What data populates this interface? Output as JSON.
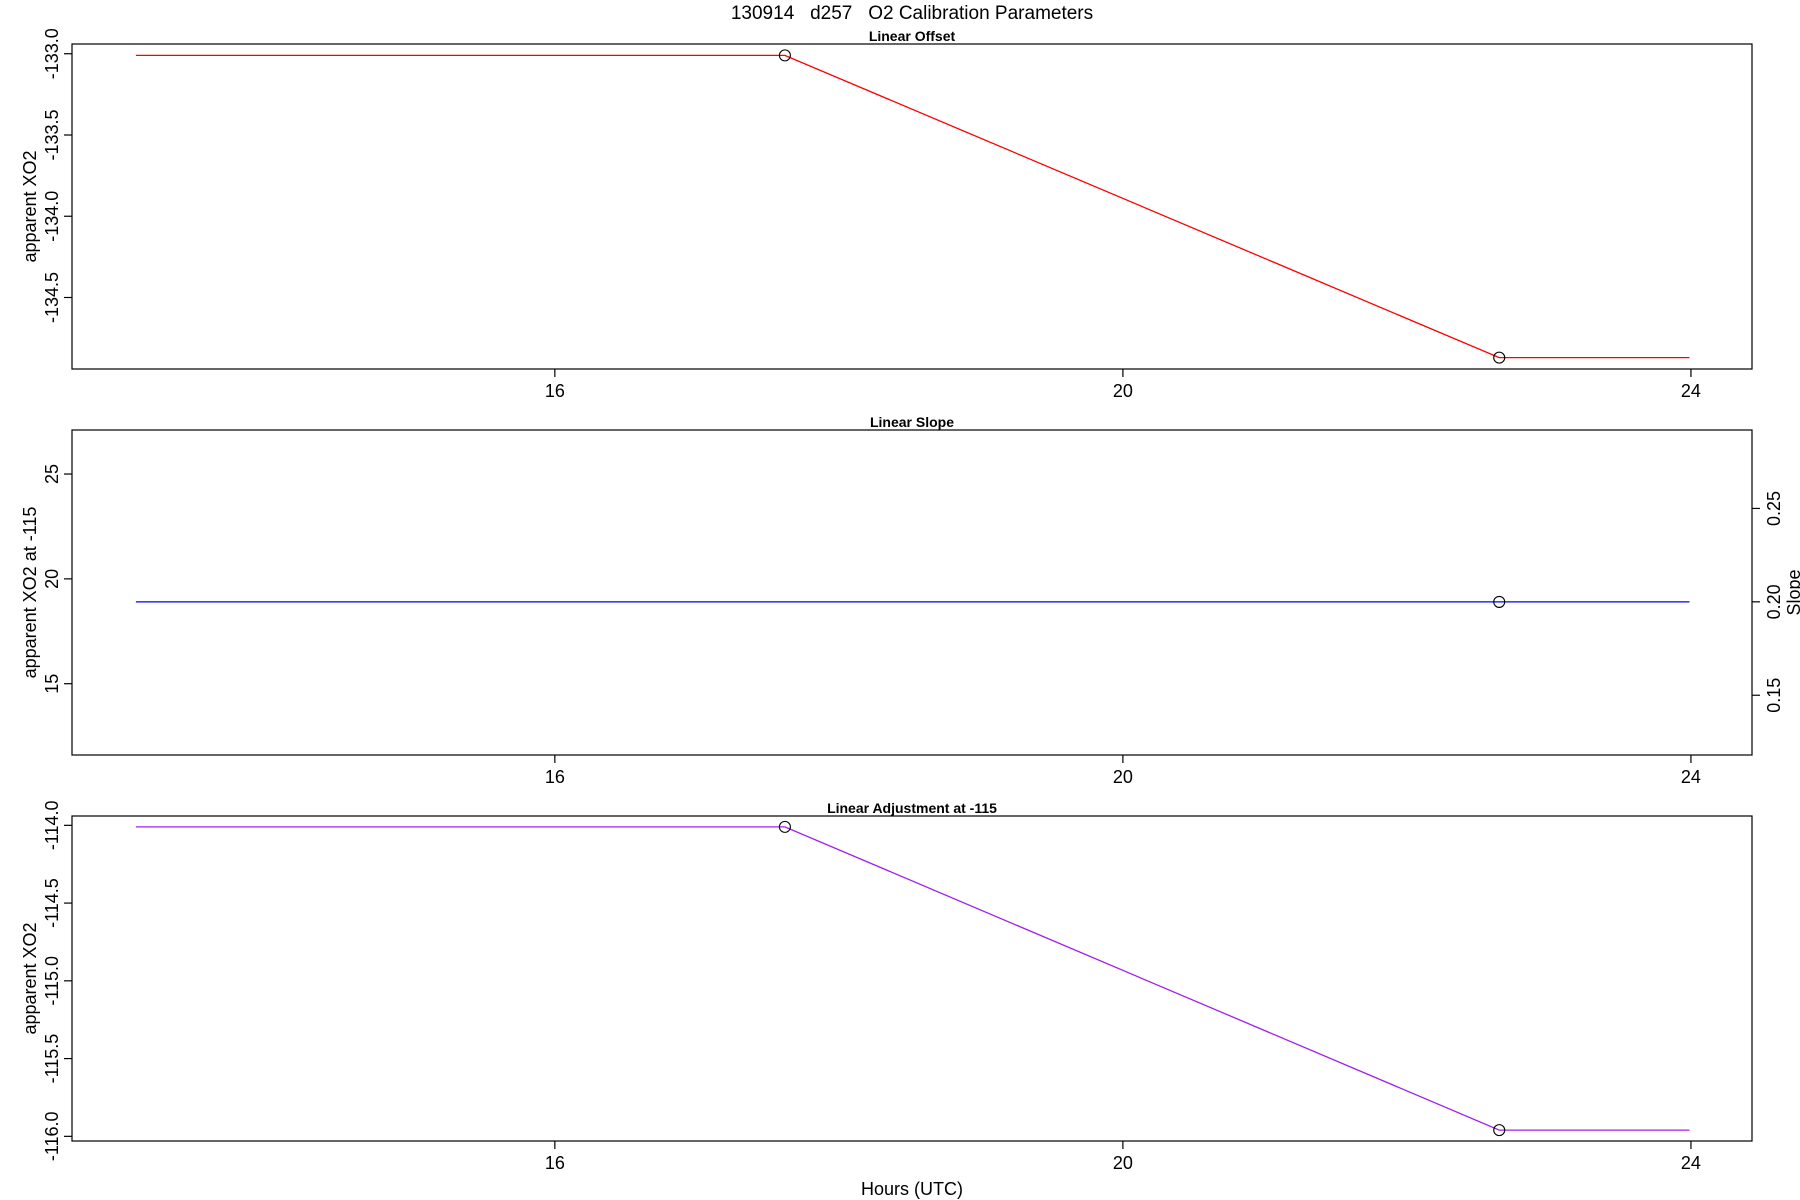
{
  "figure": {
    "title": "130914   d257   O2 Calibration Parameters",
    "xlabel": "Hours (UTC)"
  },
  "chart_data": [
    {
      "type": "line",
      "title": "Linear Offset",
      "xlabel": "",
      "ylabel": "apparent XO2",
      "xlim": [
        12.6,
        24.43
      ],
      "ylim": [
        -134.94,
        -132.94
      ],
      "xticks": [
        16,
        20,
        24
      ],
      "yticks": [
        -133.0,
        -133.5,
        -134.0,
        -134.5
      ],
      "ytick_labels": [
        "-133.0",
        "-133.5",
        "-134.0",
        "-134.5"
      ],
      "series": [
        {
          "color": "#ff0000",
          "x": [
            13.05,
            17.62,
            22.65,
            23.99
          ],
          "y": [
            -133.01,
            -133.01,
            -134.87,
            -134.87
          ]
        }
      ],
      "markers": {
        "x": [
          17.62,
          22.65
        ],
        "y": [
          -133.01,
          -134.87
        ]
      }
    },
    {
      "type": "line",
      "title": "Linear Slope",
      "xlabel": "",
      "ylabel": "apparent XO2 at -115",
      "y2label": "Slope",
      "xlim": [
        12.6,
        24.43
      ],
      "ylim": [
        11.6,
        27.1
      ],
      "y2lim": [
        0.118,
        0.292
      ],
      "xticks": [
        16,
        20,
        24
      ],
      "yticks": [
        15,
        20,
        25
      ],
      "ytick_labels": [
        "15",
        "20",
        "25"
      ],
      "y2ticks": [
        0.15,
        0.2,
        0.25
      ],
      "y2tick_labels": [
        "0.15",
        "0.20",
        "0.25"
      ],
      "series": [
        {
          "color": "#0000ff",
          "x": [
            13.05,
            23.99
          ],
          "y": [
            18.9,
            18.9
          ]
        }
      ],
      "markers": {
        "x": [
          22.65
        ],
        "y": [
          18.9
        ]
      }
    },
    {
      "type": "line",
      "title": "Linear Adjustment at -115",
      "xlabel": "Hours (UTC)",
      "ylabel": "apparent XO2",
      "xlim": [
        12.6,
        24.43
      ],
      "ylim": [
        -116.03,
        -113.94
      ],
      "xticks": [
        16,
        20,
        24
      ],
      "yticks": [
        -114.0,
        -114.5,
        -115.0,
        -115.5,
        -116.0
      ],
      "ytick_labels": [
        "-114.0",
        "-114.5",
        "-115.0",
        "-115.5",
        "-116.0"
      ],
      "series": [
        {
          "color": "#a020f0",
          "x": [
            13.05,
            17.62,
            22.65,
            23.99
          ],
          "y": [
            -114.01,
            -114.01,
            -115.96,
            -115.96
          ]
        }
      ],
      "markers": {
        "x": [
          17.62,
          22.65
        ],
        "y": [
          -114.01,
          -115.96
        ]
      }
    }
  ]
}
